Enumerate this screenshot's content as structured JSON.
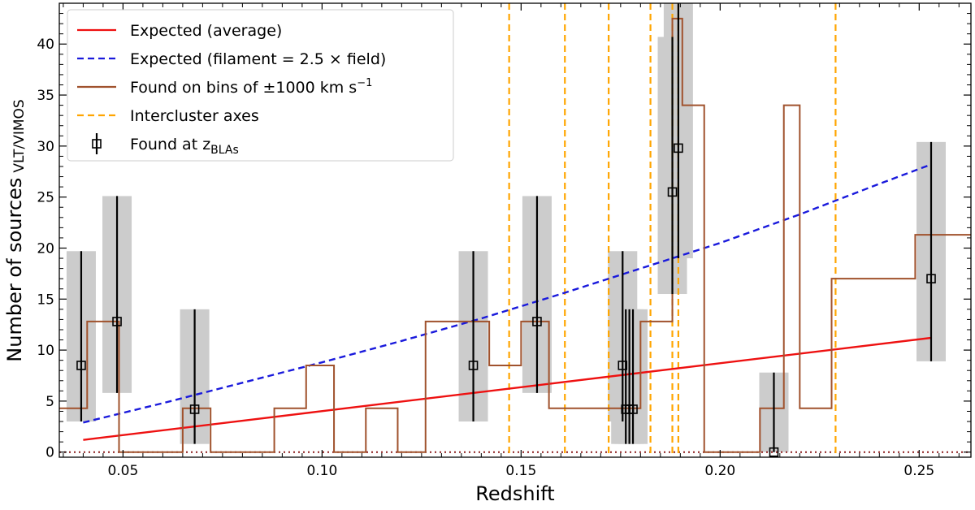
{
  "chart_data": {
    "type": "line",
    "xlabel": "Redshift",
    "ylabel": "Number of sources",
    "ylabel_subscript": "VLT/VIMOS",
    "xlim": [
      0.034,
      0.263
    ],
    "ylim": [
      -0.5,
      44
    ],
    "xticks": [
      0.05,
      0.1,
      0.15,
      0.2,
      0.25
    ],
    "xtick_labels": [
      "0.05",
      "0.10",
      "0.15",
      "0.20",
      "0.25"
    ],
    "yticks": [
      0,
      5,
      10,
      15,
      20,
      25,
      30,
      35,
      40
    ],
    "ytick_labels": [
      "0",
      "5",
      "10",
      "15",
      "20",
      "25",
      "30",
      "35",
      "40"
    ],
    "legend_position": "top-left",
    "legend": [
      {
        "label": "Expected (average)",
        "style": "red-line"
      },
      {
        "label": "Expected (filament = 2.5 × field)",
        "style": "blue-dashed"
      },
      {
        "label": "Found on bins of ±1000 km s",
        "label_sup": "−1",
        "style": "brown-line"
      },
      {
        "label": "Intercluster axes",
        "style": "orange-dashed"
      },
      {
        "label": "Found at z",
        "label_sub": "BLAs",
        "style": "marker-errorbar"
      }
    ],
    "colors": {
      "expected_average": "#ee1111",
      "expected_filament": "#1a1adc",
      "found_bins": "#a0522d",
      "intercluster_axes": "#ffa500",
      "markers": "#000000",
      "error_boxes": "#cccccc",
      "zero_line": "#8b1a1a"
    },
    "series": [
      {
        "name": "Expected (average)",
        "x": [
          0.04,
          0.253
        ],
        "y": [
          1.2,
          11.2
        ]
      },
      {
        "name": "Expected (filament = 2.5 × field)",
        "x": [
          0.04,
          0.06,
          0.08,
          0.1,
          0.12,
          0.14,
          0.16,
          0.18,
          0.2,
          0.22,
          0.24,
          0.253
        ],
        "y": [
          2.9,
          4.8,
          6.8,
          8.8,
          10.9,
          13.1,
          15.5,
          18.0,
          20.5,
          23.3,
          26.3,
          28.2
        ]
      },
      {
        "name": "Found on bins of ±1000 km s−1",
        "step_edges": [
          0.034,
          0.041,
          0.049,
          0.065,
          0.072,
          0.088,
          0.096,
          0.103,
          0.111,
          0.119,
          0.126,
          0.142,
          0.15,
          0.157,
          0.18,
          0.188,
          0.1905,
          0.196,
          0.21,
          0.216,
          0.22,
          0.228,
          0.249,
          0.257,
          0.263
        ],
        "step_values": [
          4.3,
          12.8,
          0,
          4.3,
          0,
          4.3,
          8.5,
          0,
          4.3,
          0,
          12.8,
          8.5,
          12.8,
          4.3,
          12.8,
          42.5,
          34,
          0,
          4.3,
          34,
          4.3,
          17.0,
          21.3,
          21.3
        ]
      }
    ],
    "intercluster_axes_x": [
      0.147,
      0.161,
      0.172,
      0.1825,
      0.188,
      0.1895,
      0.229
    ],
    "blas": [
      {
        "x": 0.0395,
        "y": 8.5,
        "ylow": 3.0,
        "yhigh": 19.7
      },
      {
        "x": 0.0485,
        "y": 12.8,
        "ylow": 5.8,
        "yhigh": 25.1
      },
      {
        "x": 0.068,
        "y": 4.2,
        "ylow": 0.8,
        "yhigh": 14.0
      },
      {
        "x": 0.138,
        "y": 8.5,
        "ylow": 3.0,
        "yhigh": 19.7
      },
      {
        "x": 0.154,
        "y": 12.8,
        "ylow": 5.8,
        "yhigh": 25.1
      },
      {
        "x": 0.1755,
        "y": 8.5,
        "ylow": 3.0,
        "yhigh": 19.7
      },
      {
        "x": 0.1763,
        "y": 4.2,
        "ylow": 0.8,
        "yhigh": 14.0
      },
      {
        "x": 0.1772,
        "y": 4.2,
        "ylow": 0.8,
        "yhigh": 14.0
      },
      {
        "x": 0.1781,
        "y": 4.2,
        "ylow": 0.8,
        "yhigh": 14.0
      },
      {
        "x": 0.188,
        "y": 25.5,
        "ylow": 15.5,
        "yhigh": 40.7
      },
      {
        "x": 0.1895,
        "y": 29.8,
        "ylow": 19.0,
        "yhigh": 46.0
      },
      {
        "x": 0.2135,
        "y": 0.0,
        "ylow": 0.0,
        "yhigh": 7.8
      },
      {
        "x": 0.253,
        "y": 17.0,
        "ylow": 8.9,
        "yhigh": 30.4
      }
    ]
  }
}
